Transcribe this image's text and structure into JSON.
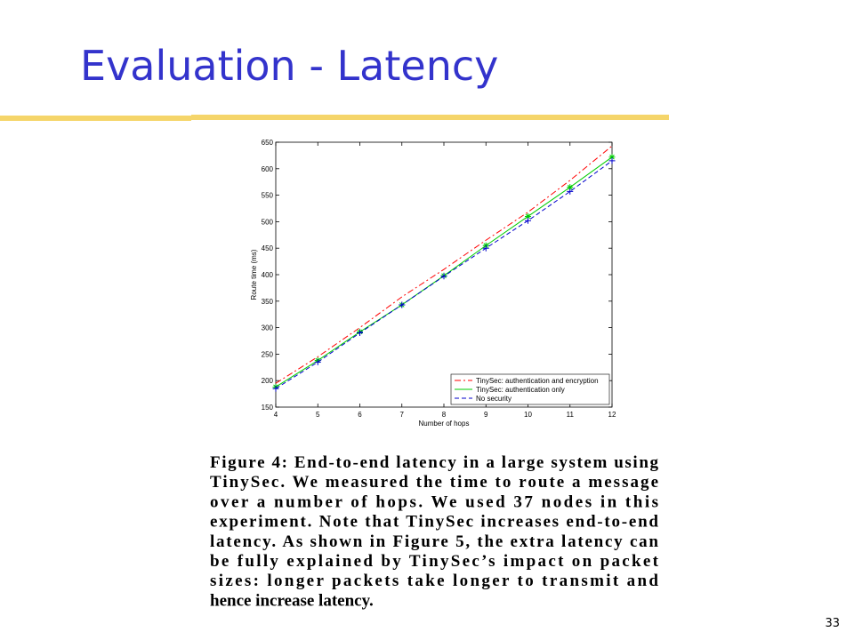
{
  "title": "Evaluation - Latency",
  "caption": [
    "Figure 4: End-to-end latency in a large system using",
    "TinySec. We measured the time to route a message",
    "over a number of hops. We used 37 nodes in this",
    "experiment. Note that TinySec increases end-to-end",
    "latency. As shown in Figure 5, the extra latency can",
    "be fully explained by TinySec’s impact on packet",
    "sizes: longer packets take longer to transmit and",
    "hence increase latency."
  ],
  "page_number": "33",
  "chart_data": {
    "type": "line",
    "x_label": "Number of hops",
    "y_label": "Route time (ms)",
    "x": [
      4,
      5,
      6,
      7,
      8,
      9,
      10,
      11,
      12
    ],
    "xlim": [
      4,
      12
    ],
    "xticks": [
      4,
      5,
      6,
      7,
      8,
      9,
      10,
      11,
      12
    ],
    "ylim": [
      150,
      650
    ],
    "yticks": [
      150,
      200,
      250,
      300,
      350,
      400,
      450,
      500,
      550,
      600,
      650
    ],
    "legend": "lower right",
    "series": [
      {
        "name": "TinySec: authentication and encryption",
        "color": "#ff0000",
        "dash": "dashdot",
        "marker": "none",
        "values": [
          195,
          245,
          300,
          358,
          410,
          465,
          518,
          578,
          643
        ]
      },
      {
        "name": "TinySec: authentication only",
        "color": "#00cc00",
        "dash": "solid",
        "marker": "star",
        "values": [
          188,
          238,
          292,
          343,
          398,
          455,
          510,
          565,
          622
        ]
      },
      {
        "name": "No security",
        "color": "#0000cc",
        "dash": "dashed",
        "marker": "plus",
        "values": [
          185,
          235,
          290,
          343,
          397,
          450,
          502,
          557,
          615
        ]
      }
    ]
  }
}
